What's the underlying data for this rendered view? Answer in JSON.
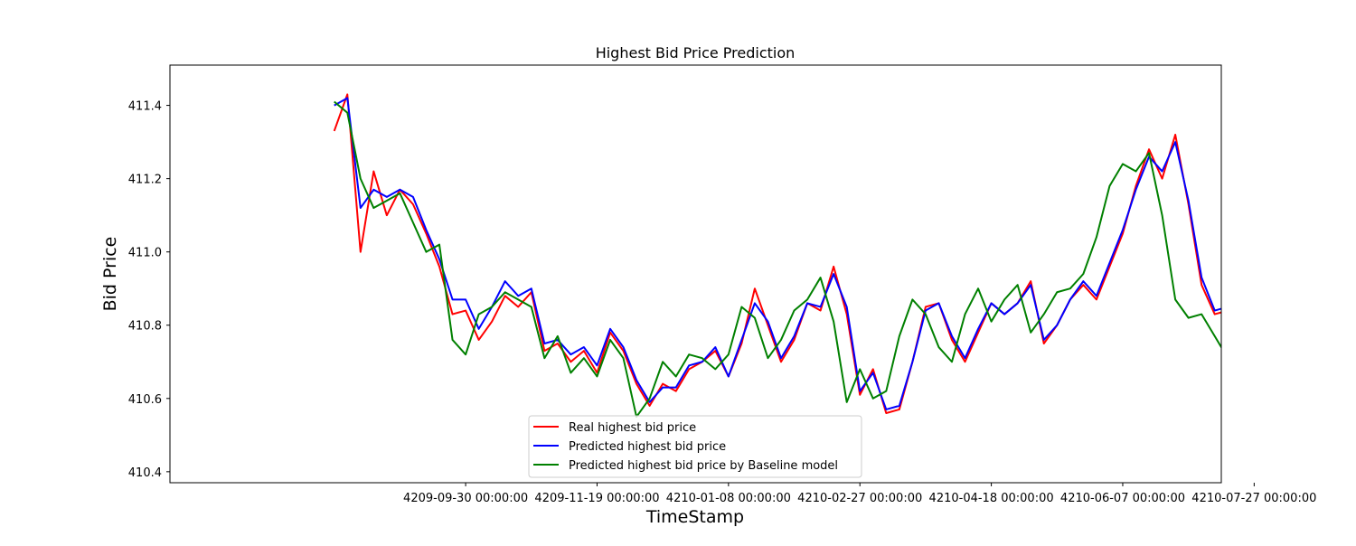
{
  "chart_data": {
    "type": "line",
    "title": "Highest Bid Price Prediction",
    "xlabel": "TimeStamp",
    "ylabel": "Bid Price",
    "xlim": [
      -62.5,
      337.5
    ],
    "ylim": [
      410.37,
      411.51
    ],
    "x_ticks": [
      {
        "value": 50,
        "label": "4209-09-30 00:00:00"
      },
      {
        "value": 100,
        "label": "4209-11-19 00:00:00"
      },
      {
        "value": 150,
        "label": "4210-01-08 00:00:00"
      },
      {
        "value": 200,
        "label": "4210-02-27 00:00:00"
      },
      {
        "value": 250,
        "label": "4210-04-18 00:00:00"
      },
      {
        "value": 300,
        "label": "4210-06-07 00:00:00"
      },
      {
        "value": 350,
        "label": "4210-07-27 00:00:00"
      }
    ],
    "y_ticks": [
      {
        "value": 410.4,
        "label": "410.4"
      },
      {
        "value": 410.6,
        "label": "410.6"
      },
      {
        "value": 410.8,
        "label": "410.8"
      },
      {
        "value": 411.0,
        "label": "411.0"
      },
      {
        "value": 411.2,
        "label": "411.2"
      },
      {
        "value": 411.4,
        "label": "411.4"
      }
    ],
    "grid": false,
    "legend_position": "lower-center",
    "x_step": 5,
    "series": [
      {
        "name": "Real highest bid price",
        "color": "#ff0000",
        "y_data": [
          411.33,
          411.43,
          411.0,
          411.22,
          411.1,
          411.17,
          411.13,
          411.05,
          410.96,
          410.83,
          410.84,
          410.76,
          410.81,
          410.88,
          410.85,
          410.89,
          410.73,
          410.75,
          410.7,
          410.73,
          410.67,
          410.78,
          410.73,
          410.64,
          410.58,
          410.64,
          410.62,
          410.68,
          410.7,
          410.73,
          410.66,
          410.75,
          410.9,
          410.8,
          410.7,
          410.76,
          410.86,
          410.84,
          410.96,
          410.83,
          410.61,
          410.68,
          410.56,
          410.57,
          410.7,
          410.85,
          410.86,
          410.76,
          410.7,
          410.78,
          410.86,
          410.83,
          410.86,
          410.92,
          410.75,
          410.8,
          410.87,
          410.91,
          410.87,
          410.96,
          411.05,
          411.18,
          411.28,
          411.2,
          411.32,
          411.13,
          410.91,
          410.83,
          410.84,
          410.79,
          410.72,
          410.74,
          410.7,
          410.62,
          410.59,
          410.7,
          410.82,
          410.94,
          410.98,
          411.12,
          411.18,
          411.13,
          411.0,
          410.92,
          411.06,
          411.07,
          411.02,
          411.13,
          411.09,
          411.17,
          411.07,
          411.35,
          411.24,
          411.16,
          411.28,
          411.22,
          411.3,
          411.23,
          411.08,
          410.98,
          410.98,
          410.87,
          410.78,
          410.76,
          410.8,
          410.85,
          410.82,
          410.74,
          410.78,
          410.87,
          410.82,
          410.84,
          410.89,
          410.65,
          410.6,
          410.56,
          410.53,
          410.52,
          410.51,
          410.52,
          410.49,
          410.47,
          410.52,
          410.7,
          410.73,
          410.78,
          410.96,
          410.91,
          410.88,
          410.66
        ]
      },
      {
        "name": "Predicted highest bid price",
        "color": "#0000ff",
        "y_data": [
          411.4,
          411.42,
          411.12,
          411.17,
          411.15,
          411.17,
          411.15,
          411.06,
          410.98,
          410.87,
          410.87,
          410.79,
          410.85,
          410.92,
          410.88,
          410.9,
          410.75,
          410.76,
          410.72,
          410.74,
          410.69,
          410.79,
          410.74,
          410.65,
          410.59,
          410.63,
          410.63,
          410.69,
          410.7,
          410.74,
          410.66,
          410.76,
          410.86,
          410.81,
          410.71,
          410.77,
          410.86,
          410.85,
          410.94,
          410.85,
          410.62,
          410.67,
          410.57,
          410.58,
          410.7,
          410.84,
          410.86,
          410.77,
          410.71,
          410.79,
          410.86,
          410.83,
          410.86,
          410.91,
          410.76,
          410.8,
          410.87,
          410.92,
          410.88,
          410.97,
          411.06,
          411.17,
          411.26,
          411.22,
          411.3,
          411.14,
          410.93,
          410.84,
          410.85,
          410.8,
          410.73,
          410.74,
          410.7,
          410.62,
          410.6,
          410.69,
          410.82,
          410.93,
          410.98,
          411.11,
          411.2,
          411.14,
          411.01,
          410.93,
          411.06,
          411.08,
          411.03,
          411.13,
          411.1,
          411.17,
          411.08,
          411.33,
          411.25,
          411.17,
          411.28,
          411.24,
          411.29,
          411.24,
          411.09,
          410.99,
          410.99,
          410.88,
          410.79,
          410.76,
          410.8,
          410.85,
          410.83,
          410.75,
          410.78,
          410.86,
          410.83,
          410.84,
          410.88,
          410.66,
          410.61,
          410.56,
          410.54,
          410.53,
          410.52,
          410.53,
          410.5,
          410.47,
          410.52,
          410.69,
          410.73,
          410.78,
          410.95,
          410.91,
          410.89,
          410.64
        ]
      },
      {
        "name": "Predicted highest bid price by Baseline model",
        "color": "#008000",
        "y_data": [
          411.41,
          411.38,
          411.2,
          411.12,
          411.14,
          411.16,
          411.08,
          411.0,
          411.02,
          410.76,
          410.72,
          410.83,
          410.85,
          410.89,
          410.87,
          410.85,
          410.71,
          410.77,
          410.67,
          410.71,
          410.66,
          410.76,
          410.71,
          410.55,
          410.6,
          410.7,
          410.66,
          410.72,
          410.71,
          410.68,
          410.72,
          410.85,
          410.82,
          410.71,
          410.76,
          410.84,
          410.87,
          410.93,
          410.81,
          410.59,
          410.68,
          410.6,
          410.62,
          410.77,
          410.87,
          410.83,
          410.74,
          410.7,
          410.83,
          410.9,
          410.81,
          410.87,
          410.91,
          410.78,
          410.83,
          410.89,
          410.9,
          410.94,
          411.04,
          411.18,
          411.24,
          411.22,
          411.27,
          411.1,
          410.87,
          410.82,
          410.83,
          410.77,
          410.71,
          410.69,
          410.64,
          410.6,
          410.77,
          410.81,
          410.96,
          411.04,
          411.17,
          411.19,
          411.08,
          410.95,
          411.06,
          411.07,
          411.04,
          411.16,
          411.13,
          411.13,
          411.08,
          411.38,
          411.22,
          411.16,
          411.27,
          411.26,
          411.26,
          411.2,
          411.03,
          410.98,
          410.96,
          410.85,
          410.75,
          410.76,
          410.81,
          410.82,
          410.79,
          410.73,
          410.79,
          410.86,
          410.87,
          410.93,
          410.77,
          410.61,
          410.56,
          410.53,
          410.51,
          410.51,
          410.5,
          410.52,
          410.46,
          410.48,
          410.58,
          410.72,
          410.79,
          410.84,
          410.94,
          410.88,
          410.87,
          410.61
        ]
      }
    ]
  }
}
